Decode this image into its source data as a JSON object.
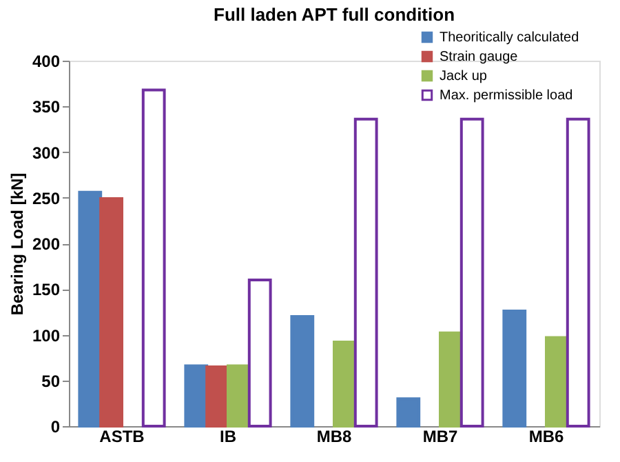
{
  "chart_data": {
    "type": "bar",
    "title": "Full laden APT full condition",
    "ylabel": "Bearing Load [kN]",
    "categories": [
      "ASTB",
      "IB",
      "MB8",
      "MB7",
      "MB6"
    ],
    "series": [
      {
        "name": "Theoritically calculated",
        "color": "#4f81bd",
        "values": [
          256,
          66,
          120,
          30,
          126
        ]
      },
      {
        "name": "Strain gauge",
        "color": "#c0504d",
        "values": [
          249,
          65,
          null,
          null,
          null
        ]
      },
      {
        "name": "Jack up",
        "color": "#9bbb59",
        "values": [
          null,
          66,
          92,
          102,
          97
        ]
      },
      {
        "name": "Max. permissible load",
        "color": "#7030a0",
        "values": [
          368,
          160,
          336,
          336,
          336
        ]
      }
    ],
    "ylim": [
      0,
      400
    ],
    "yticks": [
      0,
      50,
      100,
      150,
      200,
      250,
      300,
      350,
      400
    ],
    "grid": false,
    "legend": "top right"
  }
}
